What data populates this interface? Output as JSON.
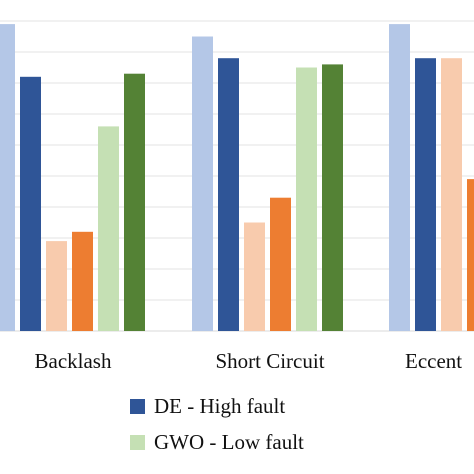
{
  "chart_data": {
    "type": "bar",
    "categories": [
      "Backlash",
      "Short Circuit",
      "Eccent"
    ],
    "ylim": [
      0,
      100
    ],
    "grid": true,
    "legend_position": "bottom",
    "series": [
      {
        "name": "",
        "color": "#b4c7e7",
        "values": [
          99,
          95,
          99
        ]
      },
      {
        "name": "DE - High fault",
        "color": "#2f5597",
        "values": [
          82,
          88,
          88
        ]
      },
      {
        "name": "",
        "color": "#f8cbad",
        "values": [
          29,
          35,
          88
        ]
      },
      {
        "name": "",
        "color": "#ed7d31",
        "values": [
          32,
          43,
          49
        ]
      },
      {
        "name": "GWO - Low fault",
        "color": "#c5e0b4",
        "values": [
          66,
          85,
          null
        ]
      },
      {
        "name": "",
        "color": "#548235",
        "values": [
          83,
          86,
          null
        ]
      }
    ]
  }
}
